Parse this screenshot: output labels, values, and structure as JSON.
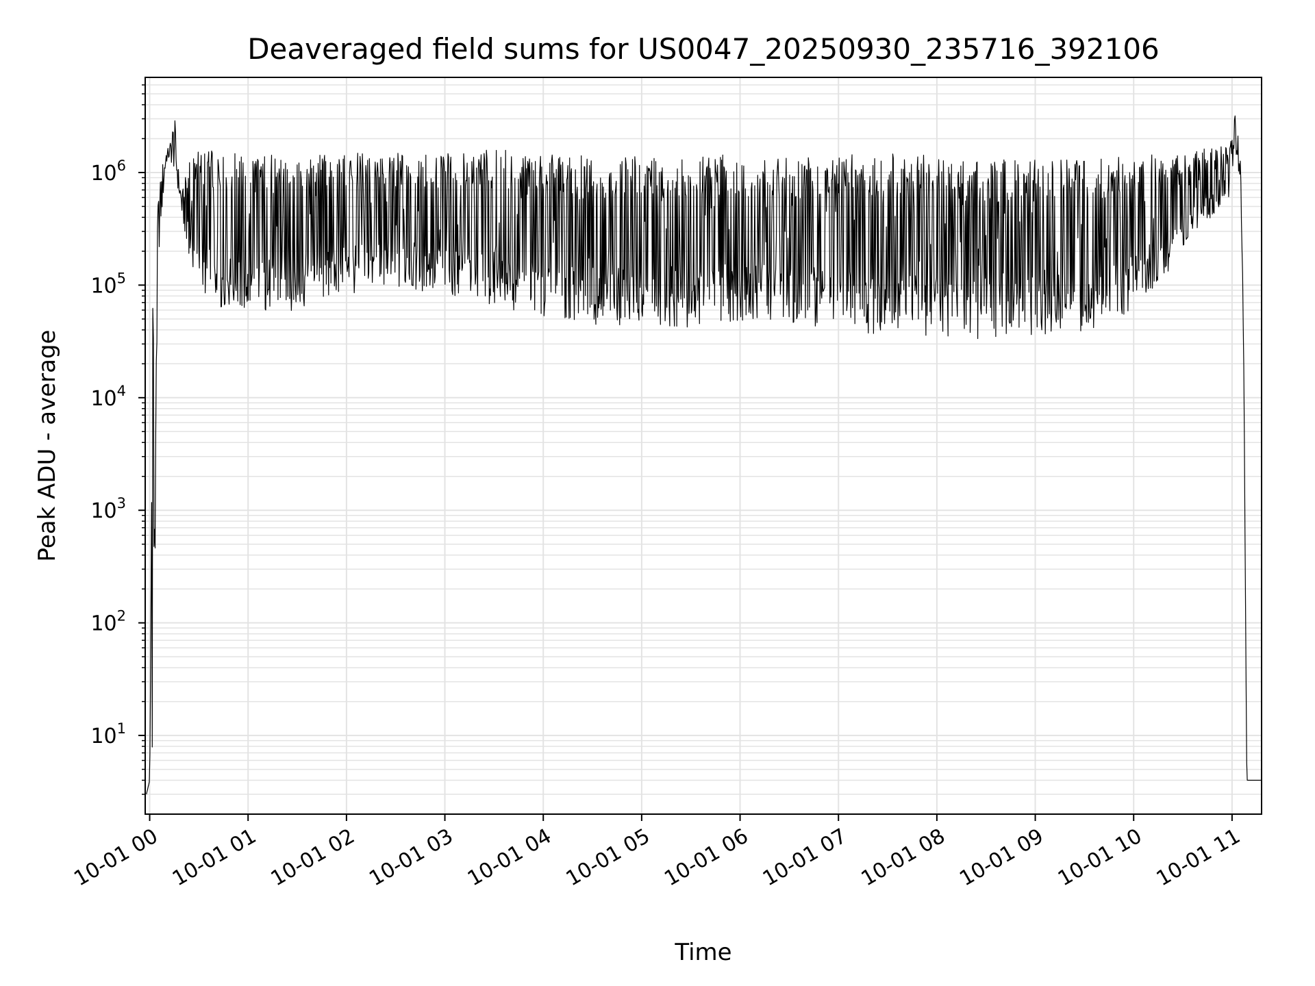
{
  "chart_data": {
    "type": "line",
    "title": "Deaveraged field sums for US0047_20250930_235716_392106",
    "xlabel": "Time",
    "ylabel": "Peak ADU - average",
    "y_scale": "log",
    "ylim": [
      2,
      7000000
    ],
    "xlim": [
      "2025-09-30T23:57:16",
      "2025-10-01T11:18:00"
    ],
    "grid": true,
    "legend": "none",
    "line_color": "#000000",
    "grid_color": "#e3e3e3",
    "x_ticks": [
      {
        "t": "2025-10-01T00:00:00",
        "label": "10-01 00"
      },
      {
        "t": "2025-10-01T01:00:00",
        "label": "10-01 01"
      },
      {
        "t": "2025-10-01T02:00:00",
        "label": "10-01 02"
      },
      {
        "t": "2025-10-01T03:00:00",
        "label": "10-01 03"
      },
      {
        "t": "2025-10-01T04:00:00",
        "label": "10-01 04"
      },
      {
        "t": "2025-10-01T05:00:00",
        "label": "10-01 05"
      },
      {
        "t": "2025-10-01T06:00:00",
        "label": "10-01 06"
      },
      {
        "t": "2025-10-01T07:00:00",
        "label": "10-01 07"
      },
      {
        "t": "2025-10-01T08:00:00",
        "label": "10-01 08"
      },
      {
        "t": "2025-10-01T09:00:00",
        "label": "10-01 09"
      },
      {
        "t": "2025-10-01T10:00:00",
        "label": "10-01 10"
      },
      {
        "t": "2025-10-01T11:00:00",
        "label": "10-01 11"
      }
    ],
    "y_ticks": [
      {
        "exp": 1,
        "base": "10",
        "sup": "1"
      },
      {
        "exp": 2,
        "base": "10",
        "sup": "2"
      },
      {
        "exp": 3,
        "base": "10",
        "sup": "3"
      },
      {
        "exp": 4,
        "base": "10",
        "sup": "4"
      },
      {
        "exp": 5,
        "base": "10",
        "sup": "5"
      },
      {
        "exp": 6,
        "base": "10",
        "sup": "6"
      }
    ],
    "series": [
      {
        "time": [
          "2025-09-30T23:58:00",
          "2025-10-01T00:00:00",
          "2025-10-01T00:02:00",
          "2025-10-01T00:05:00",
          "2025-10-01T00:08:00",
          "2025-10-01T00:10:00",
          "2025-10-01T00:12:00",
          "2025-10-01T00:15:00",
          "2025-10-01T00:18:00",
          "2025-10-01T00:20:00",
          "2025-10-01T00:25:00",
          "2025-10-01T00:30:00",
          "2025-10-01T00:40:00",
          "2025-10-01T00:50:00",
          "2025-10-01T01:00:00",
          "2025-10-01T01:30:00",
          "2025-10-01T02:00:00",
          "2025-10-01T02:30:00",
          "2025-10-01T03:00:00",
          "2025-10-01T03:30:00",
          "2025-10-01T04:00:00",
          "2025-10-01T04:30:00",
          "2025-10-01T05:00:00",
          "2025-10-01T05:30:00",
          "2025-10-01T06:00:00",
          "2025-10-01T06:30:00",
          "2025-10-01T07:00:00",
          "2025-10-01T07:30:00",
          "2025-10-01T08:00:00",
          "2025-10-01T08:30:00",
          "2025-10-01T09:00:00",
          "2025-10-01T09:30:00",
          "2025-10-01T10:00:00",
          "2025-10-01T10:30:00",
          "2025-10-01T10:58:00",
          "2025-10-01T11:02:00",
          "2025-10-01T11:05:00",
          "2025-10-01T11:07:00",
          "2025-10-01T11:09:00",
          "2025-10-01T11:18:00"
        ],
        "low": [
          3,
          4,
          4,
          150000,
          500000,
          1200000,
          1300000,
          1000000,
          600000,
          350000,
          150000,
          90000,
          65000,
          60000,
          55000,
          60000,
          80000,
          90000,
          85000,
          65000,
          50000,
          45000,
          40000,
          42000,
          48000,
          46000,
          40000,
          35000,
          35000,
          32000,
          33000,
          38000,
          60000,
          180000,
          600000,
          1300000,
          900000,
          30000,
          4,
          4
        ],
        "high": [
          3,
          4,
          150000,
          600000,
          1300000,
          1600000,
          1700000,
          3500000,
          900000,
          700000,
          1500000,
          1600000,
          1600000,
          1500000,
          1500000,
          1500000,
          1500000,
          1500000,
          1500000,
          1600000,
          1500000,
          1400000,
          1400000,
          1500000,
          1500000,
          1400000,
          1500000,
          1500000,
          1400000,
          1300000,
          1300000,
          1300000,
          1400000,
          1500000,
          1800000,
          3500000,
          2200000,
          50000,
          4,
          4
        ]
      }
    ]
  }
}
